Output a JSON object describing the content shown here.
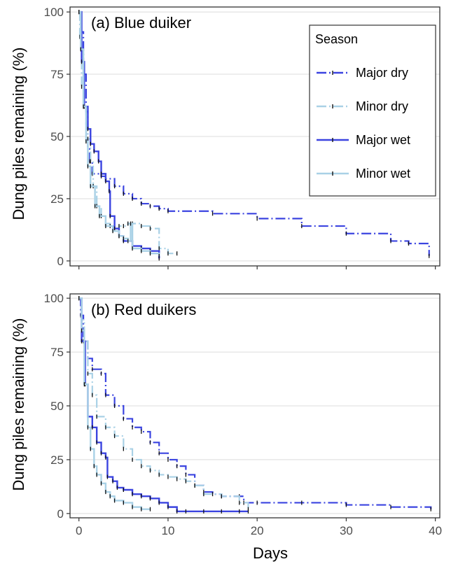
{
  "chart_data": {
    "type": "line",
    "step": true,
    "xlabel": "Days",
    "ylabel": "Dung piles remaining (%)",
    "xlim": [
      -1,
      40.5
    ],
    "ylim": [
      -2,
      102
    ],
    "x_ticks": [
      0,
      10,
      20,
      30,
      40
    ],
    "y_ticks": [
      0,
      25,
      50,
      75,
      100
    ],
    "grid": true,
    "legend": {
      "title": "Season",
      "position": "top-right",
      "entries": [
        "Major dry",
        "Minor dry",
        "Major wet",
        "Minor wet"
      ]
    },
    "panels": [
      {
        "label": "(a) Blue duiker",
        "show_x_tick_labels": false,
        "series": [
          {
            "name": "Major dry",
            "color": "#3b44e0",
            "dash": "dashdot",
            "points": [
              [
                0,
                100
              ],
              [
                0.2,
                92
              ],
              [
                0.5,
                75
              ],
              [
                0.8,
                60
              ],
              [
                1,
                45
              ],
              [
                1.2,
                40
              ],
              [
                1.5,
                35
              ],
              [
                2.5,
                34
              ],
              [
                3,
                33
              ],
              [
                4,
                30
              ],
              [
                5,
                27
              ],
              [
                6,
                25
              ],
              [
                7,
                23
              ],
              [
                8,
                22
              ],
              [
                9,
                21
              ],
              [
                10,
                20
              ],
              [
                15,
                19
              ],
              [
                20,
                17
              ],
              [
                25,
                14
              ],
              [
                30,
                11
              ],
              [
                35,
                8
              ],
              [
                37,
                7
              ],
              [
                39.3,
                2
              ]
            ]
          },
          {
            "name": "Minor dry",
            "color": "#a9d1e6",
            "dash": "dashdot",
            "points": [
              [
                0,
                100
              ],
              [
                0.1,
                90
              ],
              [
                0.3,
                70
              ],
              [
                0.5,
                62
              ],
              [
                0.8,
                55
              ],
              [
                1,
                49
              ],
              [
                1.3,
                40
              ],
              [
                1.6,
                30
              ],
              [
                2,
                22
              ],
              [
                2.5,
                18
              ],
              [
                3,
                15
              ],
              [
                3.5,
                14
              ],
              [
                4,
                13
              ],
              [
                4.5,
                14
              ],
              [
                5,
                14
              ],
              [
                5.5,
                15
              ],
              [
                6,
                15
              ],
              [
                7,
                14
              ],
              [
                8,
                13
              ],
              [
                9,
                5
              ],
              [
                10,
                3
              ],
              [
                11,
                3
              ]
            ]
          },
          {
            "name": "Major wet",
            "color": "#3b44e0",
            "dash": "solid",
            "points": [
              [
                0,
                100
              ],
              [
                0.3,
                80
              ],
              [
                0.6,
                62
              ],
              [
                1,
                53
              ],
              [
                1.3,
                47
              ],
              [
                1.7,
                44
              ],
              [
                2.2,
                40
              ],
              [
                2.5,
                35
              ],
              [
                3,
                32
              ],
              [
                3.4,
                28
              ],
              [
                3.5,
                18
              ],
              [
                4,
                13
              ],
              [
                4.5,
                10
              ],
              [
                5,
                8
              ],
              [
                6,
                6
              ],
              [
                7,
                5
              ],
              [
                8,
                4
              ],
              [
                9,
                1
              ]
            ]
          },
          {
            "name": "Minor wet",
            "color": "#a9d1e6",
            "dash": "solid",
            "points": [
              [
                0,
                100
              ],
              [
                0.2,
                85
              ],
              [
                0.5,
                62
              ],
              [
                0.8,
                48
              ],
              [
                1,
                38
              ],
              [
                1.3,
                30
              ],
              [
                1.8,
                22
              ],
              [
                2.3,
                18
              ],
              [
                3,
                14
              ],
              [
                3.8,
                12
              ],
              [
                4.5,
                10
              ],
              [
                5,
                9
              ],
              [
                5.5,
                8
              ],
              [
                5.8,
                15
              ],
              [
                6,
                5
              ],
              [
                7,
                4
              ],
              [
                8,
                3
              ],
              [
                9,
                2
              ]
            ]
          }
        ]
      },
      {
        "label": "(b) Red duikers",
        "show_x_tick_labels": true,
        "series": [
          {
            "name": "Major dry",
            "color": "#3b44e0",
            "dash": "dashdot",
            "points": [
              [
                0,
                100
              ],
              [
                0.2,
                92
              ],
              [
                0.5,
                80
              ],
              [
                1,
                72
              ],
              [
                1.5,
                67
              ],
              [
                2.5,
                65
              ],
              [
                3,
                55
              ],
              [
                4,
                50
              ],
              [
                5,
                44
              ],
              [
                6,
                40
              ],
              [
                7,
                38
              ],
              [
                8,
                33
              ],
              [
                9,
                28
              ],
              [
                10,
                25
              ],
              [
                11,
                22
              ],
              [
                12,
                18
              ],
              [
                13,
                13
              ],
              [
                14,
                10
              ],
              [
                15,
                9
              ],
              [
                16,
                8
              ],
              [
                18,
                8
              ],
              [
                18.5,
                5
              ],
              [
                20,
                5
              ],
              [
                25,
                5
              ],
              [
                30,
                4
              ],
              [
                35,
                3
              ],
              [
                39.5,
                2
              ]
            ]
          },
          {
            "name": "Minor dry",
            "color": "#a9d1e6",
            "dash": "dashdot",
            "points": [
              [
                0,
                100
              ],
              [
                0.3,
                90
              ],
              [
                0.6,
                80
              ],
              [
                1,
                65
              ],
              [
                1.5,
                55
              ],
              [
                2,
                45
              ],
              [
                3,
                40
              ],
              [
                4,
                36
              ],
              [
                5,
                30
              ],
              [
                6,
                25
              ],
              [
                7,
                22
              ],
              [
                8,
                20
              ],
              [
                9,
                18
              ],
              [
                10,
                17
              ],
              [
                11,
                16
              ],
              [
                12,
                15
              ],
              [
                13,
                13
              ],
              [
                14,
                9
              ],
              [
                16,
                8
              ],
              [
                18,
                5
              ],
              [
                19,
                2
              ]
            ]
          },
          {
            "name": "Major wet",
            "color": "#3b44e0",
            "dash": "solid",
            "points": [
              [
                0,
                100
              ],
              [
                0.3,
                80
              ],
              [
                0.7,
                60
              ],
              [
                1,
                45
              ],
              [
                1.5,
                40
              ],
              [
                2,
                33
              ],
              [
                2.5,
                28
              ],
              [
                3,
                26
              ],
              [
                3.2,
                17
              ],
              [
                3.8,
                15
              ],
              [
                4.3,
                12
              ],
              [
                5,
                11
              ],
              [
                6,
                9
              ],
              [
                7,
                8
              ],
              [
                8,
                7
              ],
              [
                9,
                5
              ],
              [
                10,
                3
              ],
              [
                11,
                1
              ],
              [
                12,
                1
              ],
              [
                14,
                1
              ],
              [
                16,
                1
              ],
              [
                18,
                1
              ],
              [
                19,
                1
              ]
            ]
          },
          {
            "name": "Minor wet",
            "color": "#a9d1e6",
            "dash": "solid",
            "points": [
              [
                0,
                100
              ],
              [
                0.3,
                85
              ],
              [
                0.6,
                60
              ],
              [
                1,
                40
              ],
              [
                1.3,
                30
              ],
              [
                1.7,
                22
              ],
              [
                2,
                18
              ],
              [
                2.5,
                14
              ],
              [
                3,
                10
              ],
              [
                3.5,
                8
              ],
              [
                4,
                6
              ],
              [
                5,
                5
              ],
              [
                6,
                3
              ],
              [
                7,
                2
              ],
              [
                8,
                2
              ]
            ]
          }
        ]
      }
    ]
  }
}
